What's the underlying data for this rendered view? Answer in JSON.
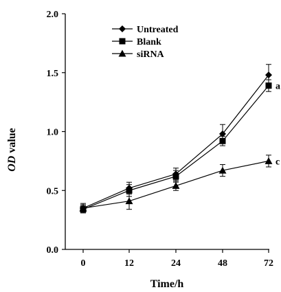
{
  "chart_data": {
    "type": "line",
    "xlabel": "Time/h",
    "ylabel_italic": "OD",
    "ylabel_rest": " value",
    "categories": [
      "0",
      "12",
      "24",
      "48",
      "72"
    ],
    "ylim": [
      0.0,
      2.0
    ],
    "yticks": [
      "0.0",
      "0.5",
      "1.0",
      "1.5",
      "2.0"
    ],
    "legend_position": "top-left",
    "series": [
      {
        "name": "Untreated",
        "marker": "diamond",
        "values": [
          0.35,
          0.52,
          0.64,
          0.98,
          1.48
        ],
        "errors": [
          0.04,
          0.05,
          0.05,
          0.08,
          0.09
        ],
        "end_label": ""
      },
      {
        "name": "Blank",
        "marker": "square",
        "values": [
          0.34,
          0.5,
          0.62,
          0.92,
          1.39
        ],
        "errors": [
          0.03,
          0.05,
          0.05,
          0.04,
          0.05
        ],
        "end_label": "a"
      },
      {
        "name": "siRNA",
        "marker": "triangle",
        "values": [
          0.35,
          0.41,
          0.54,
          0.67,
          0.75
        ],
        "errors": [
          0.03,
          0.07,
          0.04,
          0.05,
          0.05
        ],
        "end_label": "c"
      }
    ]
  }
}
